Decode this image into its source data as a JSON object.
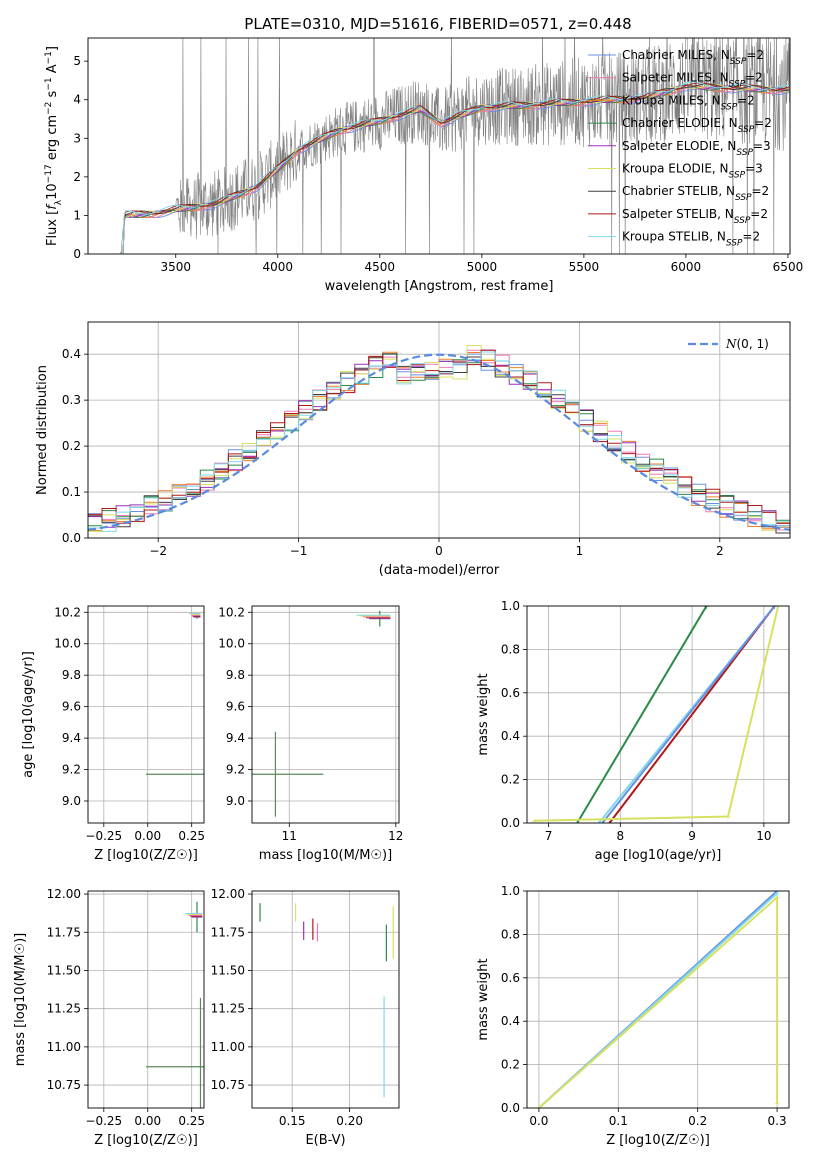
{
  "figure": {
    "title": "PLATE=0310, MJD=51616, FIBERID=0571, z=0.448",
    "legend_models": [
      {
        "name": "Chabrier MILES, N_SSP=2",
        "label": "Chabrier MILES, N",
        "n": "=2",
        "color": "#6a8fe0"
      },
      {
        "name": "Salpeter MILES, N_SSP=2",
        "label": "Salpeter MILES, N",
        "n": "=2",
        "color": "#f07ab4"
      },
      {
        "name": "Kroupa MILES, N_SSP=2",
        "label": "Kroupa MILES, N",
        "n": "=2",
        "color": "#f08030"
      },
      {
        "name": "Chabrier ELODIE, N_SSP=2",
        "label": "Chabrier ELODIE, N",
        "n": "=2",
        "color": "#2a8a4a"
      },
      {
        "name": "Salpeter ELODIE, N_SSP=3",
        "label": "Salpeter ELODIE, N",
        "n": "=3",
        "color": "#9a30c0"
      },
      {
        "name": "Kroupa ELODIE, N_SSP=3",
        "label": "Kroupa ELODIE, N",
        "n": "=3",
        "color": "#d8e060"
      },
      {
        "name": "Chabrier STELIB, N_SSP=2",
        "label": "Chabrier STELIB, N",
        "n": "=2",
        "color": "#404040"
      },
      {
        "name": "Salpeter STELIB, N_SSP=2",
        "label": "Salpeter STELIB, N",
        "n": "=2",
        "color": "#b01818"
      },
      {
        "name": "Kroupa STELIB, N_SSP=2",
        "label": "Kroupa STELIB, N",
        "n": "=2",
        "color": "#80d8e8"
      }
    ],
    "ssp_sub": "SSP"
  },
  "chart_data": [
    {
      "id": "spectrum",
      "type": "line",
      "xlabel": "wavelength [Angstrom, rest frame]",
      "ylabel_parts": [
        "Flux [",
        "f",
        "λ",
        "10",
        "−17",
        " erg cm",
        "−2",
        " s",
        "−1",
        " A",
        "−1",
        "]"
      ],
      "xlim": [
        3070,
        6510
      ],
      "ylim": [
        0,
        5.6
      ],
      "xticks": [
        3500,
        4000,
        4500,
        5000,
        5500,
        6000,
        6500
      ],
      "yticks": [
        0,
        1,
        2,
        3,
        4,
        5
      ],
      "grid": false,
      "legend": "top-right",
      "model_continuum": {
        "x": [
          3230,
          3250,
          3400,
          3500,
          3700,
          3900,
          4000,
          4100,
          4300,
          4500,
          4700,
          4800,
          5000,
          5200,
          5500,
          5800,
          6000,
          6200,
          6500
        ],
        "y": [
          0,
          1.0,
          1.05,
          1.15,
          1.3,
          1.75,
          2.2,
          2.7,
          3.2,
          3.45,
          3.75,
          3.4,
          3.8,
          3.85,
          3.95,
          4.05,
          4.35,
          4.3,
          4.25
        ]
      },
      "data_noise": "grey noisy observed spectrum spanning the same range"
    },
    {
      "id": "residuals",
      "type": "histogram",
      "xlabel": "(data-model)/error",
      "ylabel": "Normed distribution",
      "xlim": [
        -2.5,
        2.5
      ],
      "ylim": [
        0,
        0.47
      ],
      "xticks": [
        -2,
        -1,
        0,
        1,
        2
      ],
      "yticks": [
        0.0,
        0.1,
        0.2,
        0.3,
        0.4
      ],
      "grid": true,
      "legend": "top-right",
      "reference_curve": {
        "name": "N(0,1)",
        "label": "(0, 1)",
        "style": "dashed",
        "color": "#5b8bdc",
        "mu": 0,
        "sigma": 1
      },
      "bin_width": 0.1
    },
    {
      "id": "age-vs-Z",
      "type": "errorbar",
      "xlabel": "Z [log10(Z/Z☉)]",
      "ylabel": "age [log10(age/yr)]",
      "xlim": [
        -0.34,
        0.32
      ],
      "ylim": [
        8.86,
        10.24
      ],
      "xticks": [
        -0.25,
        0.0,
        0.25
      ],
      "yticks": [
        9.0,
        9.2,
        9.4,
        9.6,
        9.8,
        10.0,
        10.2
      ],
      "grid": true,
      "points": [
        {
          "x": 0.28,
          "y": 10.17,
          "xerr": 0.02,
          "yerr": 0.01
        },
        {
          "x": 0.3,
          "y": 9.17,
          "xerr": 0.31,
          "yerr": 0.0
        }
      ]
    },
    {
      "id": "age-vs-mass",
      "type": "errorbar",
      "xlabel": "mass [log10(M/M☉)]",
      "ylabel": "",
      "xlim": [
        10.65,
        12.03
      ],
      "ylim": [
        8.86,
        10.24
      ],
      "xticks": [
        11,
        12
      ],
      "yticks": [
        9.0,
        9.2,
        9.4,
        9.6,
        9.8,
        10.0,
        10.2
      ],
      "grid": true,
      "points": [
        {
          "x": 11.85,
          "y": 10.16,
          "xerr": 0.1,
          "yerr": 0.05
        },
        {
          "x": 10.87,
          "y": 9.17,
          "xerr": 0.45,
          "yerr": 0.27
        }
      ]
    },
    {
      "id": "cumulative-age",
      "type": "line",
      "xlabel": "age [log10(age/yr)]",
      "ylabel": "mass weight",
      "xlim": [
        6.7,
        10.35
      ],
      "ylim": [
        0,
        1.0
      ],
      "xticks": [
        7,
        8,
        9,
        10
      ],
      "yticks": [
        0.0,
        0.2,
        0.4,
        0.6,
        0.8,
        1.0
      ],
      "grid": true,
      "series": [
        {
          "color": "#2a8a4a",
          "x": [
            7.4,
            9.2
          ],
          "y": [
            0.0,
            1.0
          ]
        },
        {
          "color": "#b01818",
          "x": [
            7.85,
            10.15
          ],
          "y": [
            0.0,
            1.0
          ]
        },
        {
          "color": "#80d8e8",
          "x": [
            7.7,
            10.15
          ],
          "y": [
            0.0,
            1.0
          ]
        },
        {
          "color": "#6a8fe0",
          "x": [
            7.75,
            10.15
          ],
          "y": [
            0.0,
            1.0
          ]
        },
        {
          "color": "#d8e060",
          "x": [
            6.8,
            9.5,
            10.2
          ],
          "y": [
            0.01,
            0.03,
            1.0
          ]
        }
      ]
    },
    {
      "id": "mass-vs-Z",
      "type": "errorbar",
      "xlabel": "Z [log10(Z/Z☉)]",
      "ylabel": "mass [log10(M/M☉)]",
      "xlim": [
        -0.34,
        0.32
      ],
      "ylim": [
        10.6,
        12.02
      ],
      "xticks": [
        -0.25,
        0.0,
        0.25
      ],
      "yticks": [
        10.75,
        11.0,
        11.25,
        11.5,
        11.75,
        12.0
      ],
      "grid": true,
      "points": [
        {
          "x": 0.28,
          "y": 11.85,
          "xerr": 0.03,
          "yerr": 0.1
        },
        {
          "x": 0.3,
          "y": 10.87,
          "xerr": 0.31,
          "yerr": 0.45
        }
      ]
    },
    {
      "id": "mass-vs-EBV",
      "type": "errorbar",
      "xlabel": "E(B-V)",
      "ylabel": "",
      "xlim": [
        0.115,
        0.243
      ],
      "ylim": [
        10.6,
        12.02
      ],
      "xticks": [
        0.15,
        0.2
      ],
      "yticks": [
        10.75,
        11.0,
        11.25,
        11.5,
        11.75,
        12.0
      ],
      "grid": true,
      "points": [
        {
          "x": 0.122,
          "y": 11.88,
          "yerr": 0.06
        },
        {
          "x": 0.153,
          "y": 11.88,
          "yerr": 0.06
        },
        {
          "x": 0.16,
          "y": 11.76,
          "yerr": 0.06
        },
        {
          "x": 0.168,
          "y": 11.77,
          "yerr": 0.07
        },
        {
          "x": 0.172,
          "y": 11.75,
          "yerr": 0.06
        },
        {
          "x": 0.23,
          "y": 11.0,
          "yerr": 0.33
        },
        {
          "x": 0.232,
          "y": 11.68,
          "yerr": 0.12
        },
        {
          "x": 0.238,
          "y": 11.75,
          "yerr": 0.17
        }
      ]
    },
    {
      "id": "cumulative-Z",
      "type": "line",
      "xlabel": "Z [log10(Z/Z☉)]",
      "ylabel": "mass weight",
      "xlim": [
        -0.015,
        0.315
      ],
      "ylim": [
        0,
        1.0
      ],
      "xticks": [
        0.0,
        0.1,
        0.2,
        0.3
      ],
      "yticks": [
        0.0,
        0.2,
        0.4,
        0.6,
        0.8,
        1.0
      ],
      "grid": true,
      "series": [
        {
          "color": "#6a8fe0",
          "x": [
            0.0,
            0.3
          ],
          "y": [
            0.0,
            1.0
          ]
        },
        {
          "color": "#80d8e8",
          "x": [
            0.0,
            0.3
          ],
          "y": [
            0.0,
            0.99
          ]
        },
        {
          "color": "#d8e060",
          "x": [
            0.0,
            0.3,
            0.3
          ],
          "y": [
            0.0,
            0.97,
            0.02
          ]
        }
      ]
    }
  ]
}
